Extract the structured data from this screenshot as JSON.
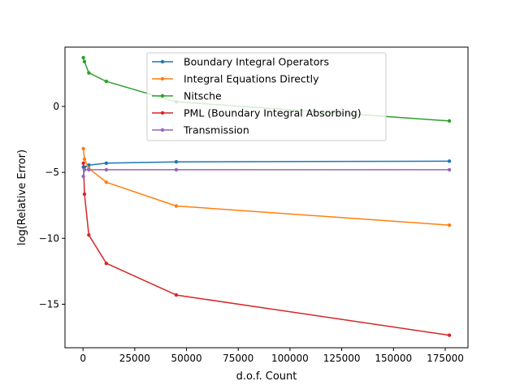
{
  "chart_data": {
    "type": "line",
    "title": "",
    "xlabel": "d.o.f. Count",
    "ylabel": "log(Relative Error)",
    "xlim": [
      -8700,
      186000
    ],
    "ylim": [
      -18.3,
      4.5
    ],
    "xticks": [
      0,
      25000,
      50000,
      75000,
      100000,
      125000,
      150000,
      175000
    ],
    "xtick_labels": [
      "0",
      "25000",
      "50000",
      "75000",
      "100000",
      "125000",
      "150000",
      "175000"
    ],
    "yticks": [
      0,
      -5,
      -10,
      -15
    ],
    "ytick_labels": [
      "0",
      "−5",
      "−10",
      "−15"
    ],
    "grid": false,
    "legend_position": "top-center",
    "series": [
      {
        "name": "Boundary Integral Operators",
        "color": "#1f77b4",
        "x": [
          176,
          704,
          2816,
          11264,
          45056,
          177000
        ],
        "y": [
          -4.6,
          -4.6,
          -4.45,
          -4.3,
          -4.2,
          -4.15
        ]
      },
      {
        "name": "Integral Equations Directly",
        "color": "#ff7f0e",
        "x": [
          176,
          704,
          2816,
          11264,
          45056,
          177000
        ],
        "y": [
          -3.2,
          -4.0,
          -4.7,
          -5.75,
          -7.55,
          -9.0
        ]
      },
      {
        "name": "Nitsche",
        "color": "#2ca02c",
        "x": [
          176,
          704,
          2816,
          11264,
          45056,
          177000
        ],
        "y": [
          3.7,
          3.4,
          2.55,
          1.9,
          0.35,
          -1.1
        ]
      },
      {
        "name": "PML (Boundary Integral Absorbing)",
        "color": "#d62728",
        "x": [
          176,
          704,
          2816,
          11264,
          45056,
          177000
        ],
        "y": [
          -4.3,
          -6.65,
          -9.75,
          -11.9,
          -14.3,
          -17.35
        ]
      },
      {
        "name": "Transmission",
        "color": "#9467bd",
        "x": [
          176,
          704,
          2816,
          11264,
          45056,
          177000
        ],
        "y": [
          -5.3,
          -4.8,
          -4.8,
          -4.8,
          -4.8,
          -4.8
        ]
      }
    ]
  }
}
